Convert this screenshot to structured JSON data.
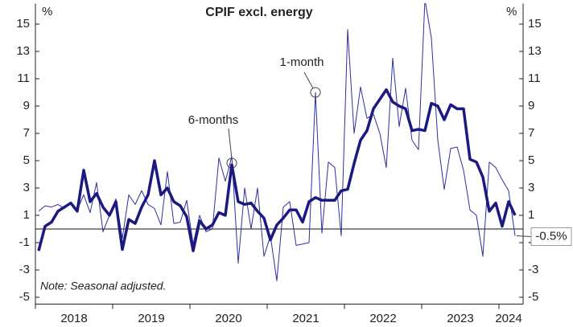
{
  "chart_data": {
    "type": "line",
    "title": "CPIF excl. energy",
    "y_unit_left": "%",
    "y_unit_right": "%",
    "note": "Note: Seasonal adjusted.",
    "annotations": [
      "6-months",
      "1-month"
    ],
    "categories": [
      null,
      null,
      null,
      null,
      null,
      null,
      "2018",
      null,
      null,
      null,
      null,
      null,
      null,
      null,
      null,
      null,
      null,
      null,
      "2019",
      null,
      null,
      null,
      null,
      null,
      null,
      null,
      null,
      null,
      null,
      null,
      "2020",
      null,
      null,
      null,
      null,
      null,
      null,
      null,
      null,
      null,
      null,
      null,
      "2021",
      null,
      null,
      null,
      null,
      null,
      null,
      null,
      null,
      null,
      null,
      null,
      "2022",
      null,
      null,
      null,
      null,
      null,
      null,
      null,
      null,
      null,
      null,
      null,
      "2023",
      null,
      null,
      null,
      null,
      null,
      null,
      "2024",
      null
    ],
    "series": [
      {
        "name": "6-months",
        "color": "#1b1a80",
        "width": 3.5,
        "values": [
          -1.6,
          0.2,
          0.5,
          1.3,
          1.6,
          1.9,
          1.3,
          4.3,
          2.0,
          2.6,
          1.6,
          1.0,
          2.0,
          -1.5,
          0.7,
          0.4,
          1.6,
          2.5,
          5.0,
          2.5,
          3.0,
          2.0,
          1.7,
          0.9,
          -1.6,
          0.6,
          0.0,
          0.3,
          1.2,
          1.0,
          4.7,
          2.0,
          1.8,
          1.9,
          1.3,
          0.8,
          -0.8,
          0.3,
          0.8,
          1.4,
          1.4,
          0.5,
          2.0,
          2.3,
          2.1,
          2.1,
          2.1,
          2.8,
          2.9,
          4.8,
          6.5,
          7.2,
          8.8,
          9.5,
          10.2,
          9.3,
          9.0,
          8.8,
          7.2,
          7.3,
          7.2,
          9.2,
          9.0,
          8.0,
          9.1,
          8.8,
          8.8,
          5.1,
          4.9,
          3.8,
          1.3,
          1.9,
          0.2,
          2.0,
          1.0
        ]
      },
      {
        "name": "1-month",
        "color": "#2e2ea0",
        "width": 1,
        "values": [
          1.3,
          1.7,
          1.6,
          1.8,
          1.5,
          1.9,
          1.4,
          2.5,
          1.2,
          3.4,
          -0.2,
          1.0,
          2.2,
          -0.7,
          2.5,
          1.8,
          2.8,
          1.8,
          1.5,
          0.3,
          4.2,
          0.4,
          0.5,
          2.1,
          -1.1,
          1.0,
          -0.2,
          0.0,
          5.2,
          3.5,
          5.3,
          -2.5,
          3.0,
          0.0,
          3.0,
          -2.0,
          -0.5,
          -3.8,
          1.6,
          2.0,
          -1.2,
          -1.1,
          -1.0,
          10.0,
          -0.3,
          4.9,
          4.5,
          -0.5,
          14.6,
          7.0,
          10.4,
          8.1,
          8.4,
          7.0,
          4.5,
          12.5,
          7.5,
          10.3,
          6.5,
          5.8,
          16.8,
          14.0,
          6.5,
          2.9,
          5.9,
          6.0,
          4.3,
          1.4,
          1.0,
          -2.0,
          4.9,
          4.5,
          3.6,
          2.8,
          -0.5
        ],
        "value_labels": [
          null,
          null,
          null,
          null,
          null,
          null,
          null,
          null,
          null,
          null,
          null,
          null,
          null,
          null,
          null,
          null,
          null,
          null,
          null,
          null,
          null,
          null,
          null,
          null,
          null,
          null,
          null,
          null,
          null,
          null,
          null,
          null,
          null,
          null,
          null,
          null,
          null,
          null,
          null,
          null,
          null,
          null,
          null,
          null,
          null,
          null,
          null,
          null,
          null,
          null,
          null,
          null,
          null,
          null,
          null,
          null,
          null,
          null,
          null,
          null,
          null,
          null,
          null,
          null,
          null,
          null,
          null,
          null,
          null,
          null,
          null,
          null,
          null,
          null,
          "-0.5%"
        ]
      }
    ],
    "ylim": [
      -5.5,
      16.5
    ],
    "yticks": [
      -5,
      -3,
      -1,
      1,
      3,
      5,
      7,
      9,
      11,
      13,
      15
    ],
    "y2lim": [
      -5.5,
      16.5
    ],
    "y2ticks": [
      -5,
      -3,
      -1,
      1,
      3,
      5,
      7,
      9,
      11,
      13,
      15
    ],
    "reference_line": 0
  }
}
